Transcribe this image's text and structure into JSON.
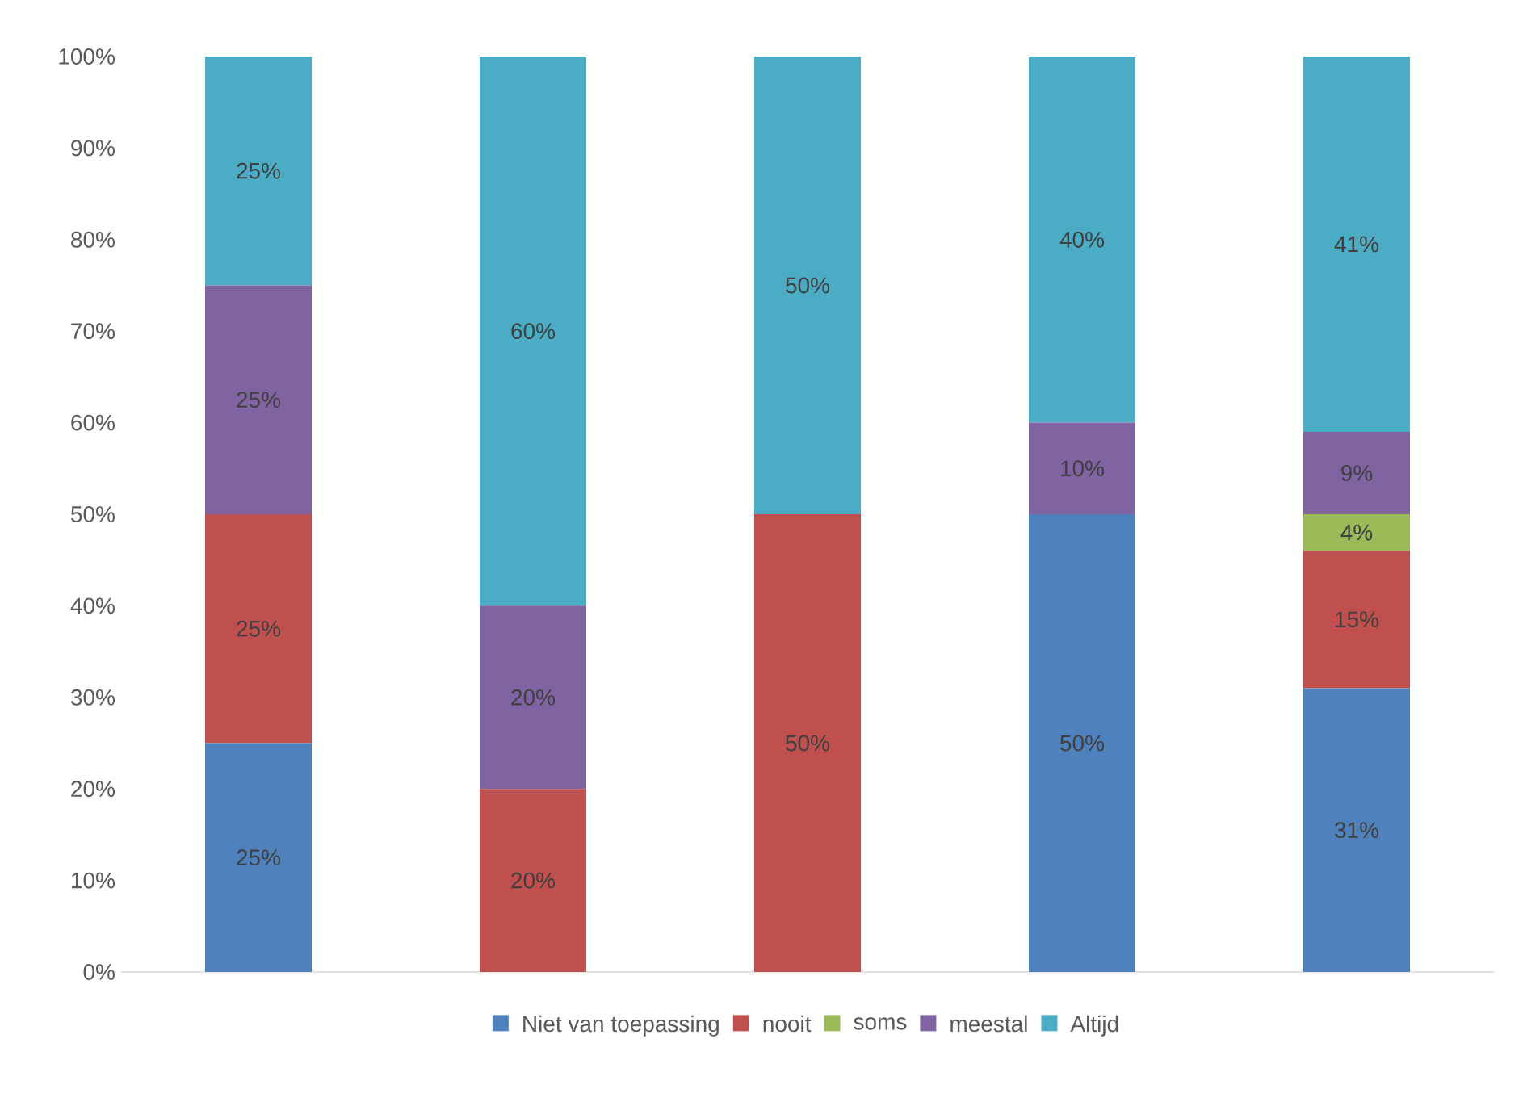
{
  "chart_data": {
    "type": "bar",
    "stacked": true,
    "categories": [
      null,
      null,
      null,
      null,
      null
    ],
    "series": [
      {
        "name": "Niet van toepassing",
        "color": "#4f81bd",
        "values": [
          25,
          0,
          0,
          50,
          31
        ],
        "value_labels": [
          "25%",
          null,
          null,
          "50%",
          "31%"
        ]
      },
      {
        "name": "nooit",
        "color": "#c0504d",
        "values": [
          25,
          20,
          50,
          0,
          15
        ],
        "value_labels": [
          "25%",
          "20%",
          "50%",
          null,
          "15%"
        ]
      },
      {
        "name": "soms",
        "color": "#9bbb59",
        "values": [
          0,
          0,
          0,
          0,
          4
        ],
        "value_labels": [
          null,
          null,
          null,
          null,
          "4%"
        ]
      },
      {
        "name": "meestal",
        "color": "#8064a2",
        "values": [
          25,
          20,
          0,
          10,
          9
        ],
        "value_labels": [
          "25%",
          "20%",
          null,
          "10%",
          "9%"
        ]
      },
      {
        "name": "Altijd",
        "color": "#4bacc6",
        "values": [
          25,
          60,
          50,
          40,
          41
        ],
        "value_labels": [
          "25%",
          "60%",
          "50%",
          "40%",
          "41%"
        ]
      }
    ],
    "ylim": [
      0,
      100
    ],
    "yticks": [
      {
        "value": 0,
        "label": "0%"
      },
      {
        "value": 10,
        "label": "10%"
      },
      {
        "value": 20,
        "label": "20%"
      },
      {
        "value": 30,
        "label": "30%"
      },
      {
        "value": 40,
        "label": "40%"
      },
      {
        "value": 50,
        "label": "50%"
      },
      {
        "value": 60,
        "label": "60%"
      },
      {
        "value": 70,
        "label": "70%"
      },
      {
        "value": 80,
        "label": "80%"
      },
      {
        "value": 90,
        "label": "90%"
      },
      {
        "value": 100,
        "label": "100%"
      }
    ],
    "legend": "bottom"
  }
}
